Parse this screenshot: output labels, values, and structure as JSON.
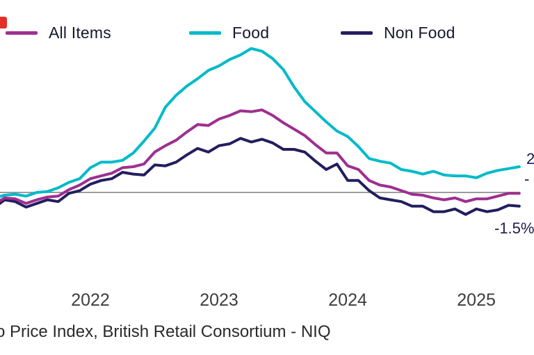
{
  "decor": {
    "cropped_red_mark_color": "#e23128"
  },
  "legend": {
    "items": [
      {
        "label": "All Items",
        "color": "#9e2f90"
      },
      {
        "label": "Food",
        "color": "#00bac8"
      },
      {
        "label": "Non Food",
        "color": "#221e5e"
      }
    ]
  },
  "right_labels": {
    "food_partial": "2",
    "all_items_partial": "-",
    "non_food": "-1.5%"
  },
  "footer": {
    "text": "o Price Index, British Retail Consortium - NIQ"
  },
  "chart_data": {
    "type": "line",
    "title": "",
    "xlabel": "",
    "ylabel": "",
    "grid": false,
    "legend_position": "top-left",
    "zero_line": true,
    "zero_line_color": "#7b7b7b",
    "ylim": [
      -4,
      17
    ],
    "x_unit": "month",
    "x": [
      "2021-04",
      "2021-05",
      "2021-06",
      "2021-07",
      "2021-08",
      "2021-09",
      "2021-10",
      "2021-11",
      "2021-12",
      "2022-01",
      "2022-02",
      "2022-03",
      "2022-04",
      "2022-05",
      "2022-06",
      "2022-07",
      "2022-08",
      "2022-09",
      "2022-10",
      "2022-11",
      "2022-12",
      "2023-01",
      "2023-02",
      "2023-03",
      "2023-04",
      "2023-05",
      "2023-06",
      "2023-07",
      "2023-08",
      "2023-09",
      "2023-10",
      "2023-11",
      "2023-12",
      "2024-01",
      "2024-02",
      "2024-03",
      "2024-04",
      "2024-05",
      "2024-06",
      "2024-07",
      "2024-08",
      "2024-09",
      "2024-10",
      "2024-11",
      "2024-12",
      "2025-01",
      "2025-02",
      "2025-03",
      "2025-04",
      "2025-05"
    ],
    "series": [
      {
        "name": "All Items",
        "color": "#9e2f90",
        "values": [
          -1.3,
          -0.6,
          -0.7,
          -1.2,
          -0.8,
          -0.5,
          -0.4,
          0.3,
          0.8,
          1.5,
          1.8,
          2.1,
          2.7,
          2.8,
          3.1,
          4.4,
          5.1,
          5.7,
          6.6,
          7.4,
          7.3,
          8.0,
          8.4,
          8.9,
          8.8,
          9.0,
          8.4,
          7.6,
          6.9,
          6.2,
          5.2,
          4.3,
          4.3,
          2.9,
          2.5,
          1.3,
          0.8,
          0.6,
          0.2,
          -0.2,
          -0.3,
          -0.6,
          -0.8,
          -0.6,
          -1.0,
          -0.7,
          -0.7,
          -0.4,
          -0.1,
          -0.1
        ]
      },
      {
        "name": "Food",
        "color": "#00bac8",
        "values": [
          -0.6,
          -0.3,
          -0.2,
          -0.4,
          0.0,
          0.1,
          0.5,
          1.1,
          1.5,
          2.7,
          3.3,
          3.3,
          3.5,
          4.3,
          5.6,
          7.0,
          9.3,
          10.6,
          11.6,
          12.4,
          13.3,
          13.8,
          14.5,
          15.0,
          15.7,
          15.4,
          14.6,
          13.4,
          11.5,
          9.9,
          8.8,
          7.7,
          6.7,
          6.1,
          5.0,
          3.7,
          3.4,
          3.2,
          2.5,
          2.3,
          2.0,
          2.3,
          1.9,
          1.8,
          1.8,
          1.6,
          2.1,
          2.4,
          2.6,
          2.8
        ]
      },
      {
        "name": "Non Food",
        "color": "#221e5e",
        "values": [
          -1.7,
          -0.8,
          -1.0,
          -1.6,
          -1.2,
          -0.8,
          -1.0,
          -0.1,
          0.2,
          0.9,
          1.3,
          1.5,
          2.2,
          2.0,
          1.9,
          3.0,
          2.9,
          3.3,
          4.1,
          4.8,
          4.4,
          5.1,
          5.3,
          5.9,
          5.5,
          5.8,
          5.4,
          4.7,
          4.7,
          4.4,
          3.4,
          2.5,
          3.1,
          1.3,
          1.3,
          0.2,
          -0.6,
          -0.8,
          -1.0,
          -1.5,
          -1.5,
          -2.1,
          -2.1,
          -1.8,
          -2.4,
          -1.8,
          -2.1,
          -1.9,
          -1.4,
          -1.5
        ]
      }
    ],
    "x_tick_labels": [
      {
        "label": "2022",
        "month_index": 9
      },
      {
        "label": "2023",
        "month_index": 21
      },
      {
        "label": "2024",
        "month_index": 33
      },
      {
        "label": "2025",
        "month_index": 45
      }
    ],
    "end_labels": {
      "non_food": "-1.5%"
    }
  }
}
